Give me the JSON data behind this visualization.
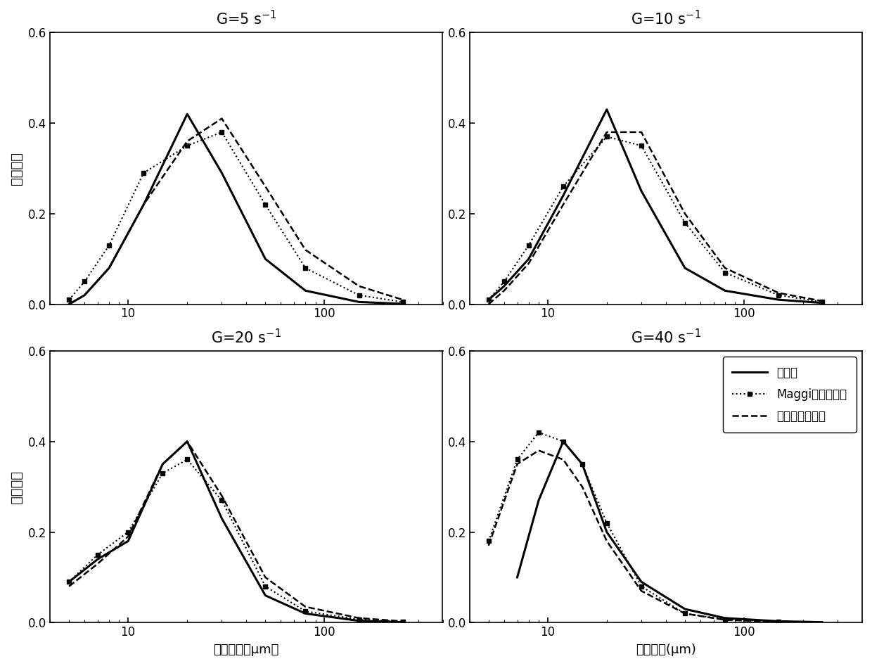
{
  "panels": [
    {
      "title_plain": "G=5 s",
      "title_sup": "-1",
      "exp_x": [
        5,
        6,
        8,
        12,
        20,
        30,
        50,
        80,
        150,
        250
      ],
      "exp_y": [
        0.0,
        0.02,
        0.08,
        0.22,
        0.42,
        0.29,
        0.1,
        0.03,
        0.005,
        0.001
      ],
      "maggi_x": [
        5,
        6,
        8,
        12,
        20,
        30,
        50,
        80,
        150,
        250
      ],
      "maggi_y": [
        0.01,
        0.05,
        0.13,
        0.29,
        0.35,
        0.38,
        0.22,
        0.08,
        0.02,
        0.005
      ],
      "new_x": [
        5,
        6,
        8,
        12,
        20,
        30,
        50,
        80,
        150,
        250
      ],
      "new_y": [
        0.0,
        0.02,
        0.08,
        0.22,
        0.36,
        0.41,
        0.26,
        0.12,
        0.04,
        0.01
      ]
    },
    {
      "title_plain": "G=10 s",
      "title_sup": "-1",
      "exp_x": [
        5,
        6,
        8,
        12,
        20,
        30,
        50,
        80,
        150,
        250
      ],
      "exp_y": [
        0.01,
        0.04,
        0.1,
        0.24,
        0.43,
        0.25,
        0.08,
        0.03,
        0.01,
        0.003
      ],
      "maggi_x": [
        5,
        6,
        8,
        12,
        20,
        30,
        50,
        80,
        150,
        250
      ],
      "maggi_y": [
        0.01,
        0.05,
        0.13,
        0.26,
        0.37,
        0.35,
        0.18,
        0.07,
        0.02,
        0.005
      ],
      "new_x": [
        5,
        6,
        8,
        12,
        20,
        30,
        50,
        80,
        150,
        250
      ],
      "new_y": [
        0.0,
        0.03,
        0.09,
        0.22,
        0.38,
        0.38,
        0.2,
        0.08,
        0.025,
        0.007
      ]
    },
    {
      "title_plain": "G=20 s",
      "title_sup": "-1",
      "exp_x": [
        5,
        7,
        10,
        15,
        20,
        30,
        50,
        80,
        150,
        250
      ],
      "exp_y": [
        0.09,
        0.14,
        0.18,
        0.35,
        0.4,
        0.23,
        0.06,
        0.02,
        0.004,
        0.001
      ],
      "maggi_x": [
        5,
        7,
        10,
        15,
        20,
        30,
        50,
        80,
        150,
        250
      ],
      "maggi_y": [
        0.09,
        0.15,
        0.2,
        0.33,
        0.36,
        0.27,
        0.08,
        0.025,
        0.007,
        0.002
      ],
      "new_x": [
        5,
        7,
        10,
        15,
        20,
        30,
        50,
        80,
        150,
        250
      ],
      "new_y": [
        0.08,
        0.13,
        0.19,
        0.35,
        0.4,
        0.28,
        0.1,
        0.035,
        0.01,
        0.003
      ]
    },
    {
      "title_plain": "G=40 s",
      "title_sup": "-1",
      "exp_x": [
        7,
        9,
        12,
        15,
        20,
        30,
        50,
        80,
        150,
        250
      ],
      "exp_y": [
        0.1,
        0.27,
        0.4,
        0.35,
        0.2,
        0.09,
        0.03,
        0.01,
        0.003,
        0.001
      ],
      "maggi_x": [
        5,
        7,
        9,
        12,
        15,
        20,
        30,
        50,
        80,
        150
      ],
      "maggi_y": [
        0.18,
        0.36,
        0.42,
        0.4,
        0.35,
        0.22,
        0.08,
        0.02,
        0.007,
        0.002
      ],
      "new_x": [
        5,
        7,
        9,
        12,
        15,
        20,
        30,
        50,
        80,
        150
      ],
      "new_y": [
        0.17,
        0.35,
        0.38,
        0.36,
        0.3,
        0.18,
        0.07,
        0.02,
        0.006,
        0.002
      ]
    }
  ],
  "ylim": [
    0.0,
    0.6
  ],
  "xlim": [
    4,
    400
  ],
  "yticks": [
    0.0,
    0.2,
    0.4,
    0.6
  ],
  "ylabel": "所占比例",
  "xlabel_left": "紧团粒径（μm）",
  "xlabel_right": "紧团粒径(μm)",
  "legend_labels": [
    "试验值",
    "Maggi模型计算值",
    "新建模型计算值"
  ],
  "background": "white"
}
